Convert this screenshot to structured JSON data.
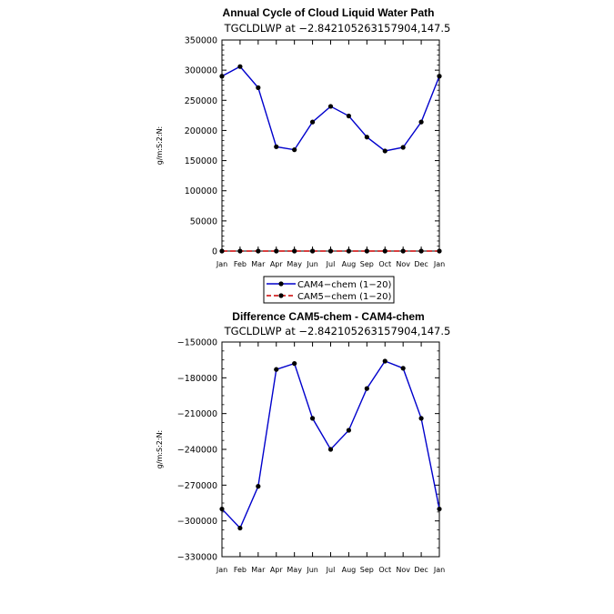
{
  "chart_data": [
    {
      "type": "line",
      "title": "Annual Cycle of Cloud Liquid Water Path",
      "subtitle": "TGCLDLWP at −2.842105263157904,147.5",
      "xlabel": "",
      "ylabel": "g/m:S:2:N:",
      "categories": [
        "Jan",
        "Feb",
        "Mar",
        "Apr",
        "May",
        "Jun",
        "Jul",
        "Aug",
        "Sep",
        "Oct",
        "Nov",
        "Dec",
        "Jan"
      ],
      "ylim": [
        0,
        350000
      ],
      "yticks": [
        "0",
        "50000",
        "100000",
        "150000",
        "200000",
        "250000",
        "300000",
        "350000"
      ],
      "ytick_values": [
        0,
        50000,
        100000,
        150000,
        200000,
        250000,
        300000,
        350000
      ],
      "series": [
        {
          "name": "CAM4-chem (1-20)",
          "color": "#0000cc",
          "style": "solid",
          "values": [
            290000,
            306000,
            271000,
            173000,
            168000,
            214000,
            240000,
            224000,
            189000,
            166000,
            172000,
            214000,
            290000
          ]
        },
        {
          "name": "CAM5-chem (1-20)",
          "color": "#cc0000",
          "style": "dashed",
          "values": [
            0,
            0,
            0,
            0,
            0,
            0,
            0,
            0,
            0,
            0,
            0,
            0,
            0
          ]
        }
      ],
      "legend": {
        "placement": "bottom",
        "entries": [
          "CAM4−chem (1−20)",
          "CAM5−chem (1−20)"
        ]
      }
    },
    {
      "type": "line",
      "title": "Difference CAM5-chem - CAM4-chem",
      "subtitle": "TGCLDLWP at −2.842105263157904,147.5",
      "xlabel": "",
      "ylabel": "g/m:S:2:N:",
      "categories": [
        "Jan",
        "Feb",
        "Mar",
        "Apr",
        "May",
        "Jun",
        "Jul",
        "Aug",
        "Sep",
        "Oct",
        "Nov",
        "Dec",
        "Jan"
      ],
      "ylim": [
        -330000,
        -150000
      ],
      "yticks": [
        "−150000",
        "−180000",
        "−210000",
        "−240000",
        "−270000",
        "−300000",
        "−330000"
      ],
      "ytick_values": [
        -150000,
        -180000,
        -210000,
        -240000,
        -270000,
        -300000,
        -330000
      ],
      "series": [
        {
          "name": "",
          "color": "#0000cc",
          "style": "solid",
          "values": [
            -290000,
            -306000,
            -271000,
            -173000,
            -168000,
            -214000,
            -240000,
            -224000,
            -189000,
            -166000,
            -172000,
            -214000,
            -290000
          ]
        }
      ]
    }
  ]
}
